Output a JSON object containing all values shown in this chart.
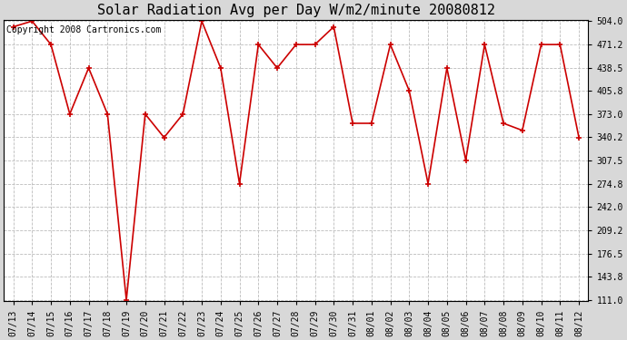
{
  "title": "Solar Radiation Avg per Day W/m2/minute 20080812",
  "copyright": "Copyright 2008 Cartronics.com",
  "labels": [
    "07/13",
    "07/14",
    "07/15",
    "07/16",
    "07/17",
    "07/18",
    "07/19",
    "07/20",
    "07/21",
    "07/22",
    "07/23",
    "07/24",
    "07/25",
    "07/26",
    "07/27",
    "07/28",
    "07/29",
    "07/30",
    "07/31",
    "08/01",
    "08/02",
    "08/03",
    "08/04",
    "08/05",
    "08/06",
    "08/07",
    "08/08",
    "08/09",
    "08/10",
    "08/11",
    "08/12"
  ],
  "values": [
    496,
    504,
    471,
    373,
    438,
    373,
    111,
    373,
    340,
    373,
    504,
    438,
    275,
    471,
    438,
    471,
    471,
    496,
    360,
    360,
    471,
    406,
    275,
    438,
    308,
    471,
    360,
    350,
    471,
    471,
    340
  ],
  "y_ticks": [
    111.0,
    143.8,
    176.5,
    209.2,
    242.0,
    274.8,
    307.5,
    340.2,
    373.0,
    405.8,
    438.5,
    471.2,
    504.0
  ],
  "ylim_min": 111.0,
  "ylim_max": 504.0,
  "line_color": "#cc0000",
  "marker": "+",
  "grid_color": "#bbbbbb",
  "bg_color": "#d8d8d8",
  "plot_bg": "#ffffff",
  "title_fontsize": 11,
  "copyright_fontsize": 7,
  "tick_fontsize": 7
}
